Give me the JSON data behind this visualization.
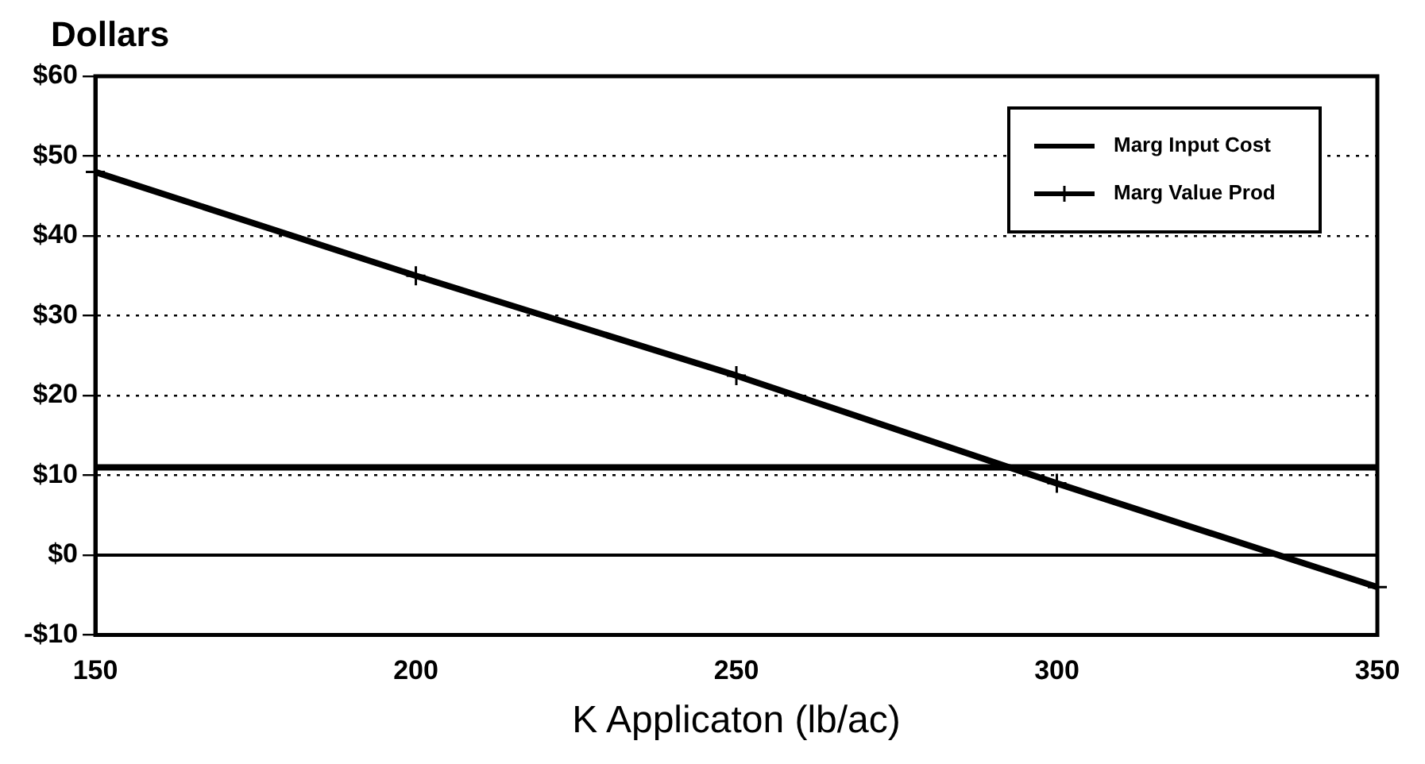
{
  "chart_data": {
    "type": "line",
    "ylabel": "Dollars",
    "xlabel": "K Applicaton (lb/ac)",
    "x": [
      150,
      200,
      250,
      300,
      350
    ],
    "series": [
      {
        "name": "Marg Input Cost",
        "color": "#000000",
        "values": [
          11,
          11,
          11,
          11,
          11
        ],
        "marker": "none"
      },
      {
        "name": "Marg Value Prod",
        "color": "#000000",
        "values": [
          48,
          35,
          22.5,
          9,
          -4
        ],
        "marker": "cross"
      }
    ],
    "xlim": [
      150,
      350
    ],
    "xticks": [
      150,
      200,
      250,
      300,
      350
    ],
    "ylim": [
      -10,
      60
    ],
    "yticks": [
      {
        "value": -10,
        "label": "-$10"
      },
      {
        "value": 0,
        "label": "$0"
      },
      {
        "value": 10,
        "label": "$10"
      },
      {
        "value": 20,
        "label": "$20"
      },
      {
        "value": 30,
        "label": "$30"
      },
      {
        "value": 40,
        "label": "$40"
      },
      {
        "value": 50,
        "label": "$50"
      },
      {
        "value": 60,
        "label": "$60"
      }
    ],
    "ref_lines": [
      {
        "axis": "y",
        "value": 0,
        "color": "#000000",
        "line_style": "solid"
      }
    ],
    "grid": "y",
    "line_style": "solid",
    "legend": "top right"
  }
}
